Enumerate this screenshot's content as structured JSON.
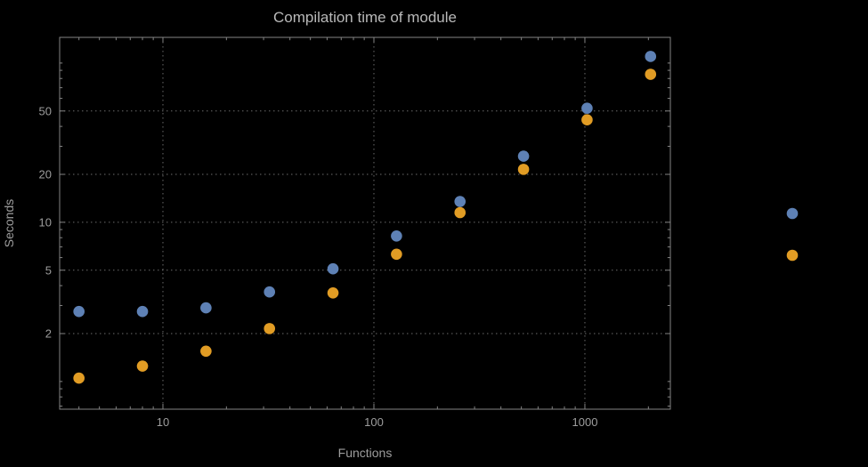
{
  "page": {
    "background": "#000000"
  },
  "chart_data": {
    "type": "scatter",
    "title": "Compilation time of module",
    "xlabel": "Functions",
    "ylabel": "Seconds",
    "x_scale": "log",
    "y_scale": "log",
    "x_range": [
      3.24,
      2542
    ],
    "y_range": [
      0.67,
      145
    ],
    "x_ticks": [
      10,
      100,
      1000
    ],
    "y_ticks": [
      2,
      5,
      10,
      20,
      50
    ],
    "grid": "dotted",
    "x": [
      4,
      8,
      16,
      32,
      64,
      128,
      256,
      512,
      1024,
      2048
    ],
    "series": [
      {
        "name": "series-blue",
        "color": "#5e81b5",
        "values": [
          2.75,
          2.75,
          2.9,
          3.65,
          5.1,
          8.2,
          13.5,
          26,
          52,
          110
        ]
      },
      {
        "name": "series-orange",
        "color": "#e19c24",
        "values": [
          1.05,
          1.25,
          1.55,
          2.15,
          3.6,
          6.3,
          11.5,
          21.5,
          44,
          85
        ]
      }
    ],
    "legend": {
      "position": "right-outside",
      "labels_visible": false,
      "entries": [
        {
          "color": "#5e81b5",
          "label": ""
        },
        {
          "color": "#e19c24",
          "label": ""
        }
      ]
    },
    "styles": {
      "background": "#000000",
      "frame_color": "#848484",
      "grid_color": "#6b6b6b",
      "label_color": "#9d9d9d",
      "title_color": "#b9b9b9"
    }
  }
}
